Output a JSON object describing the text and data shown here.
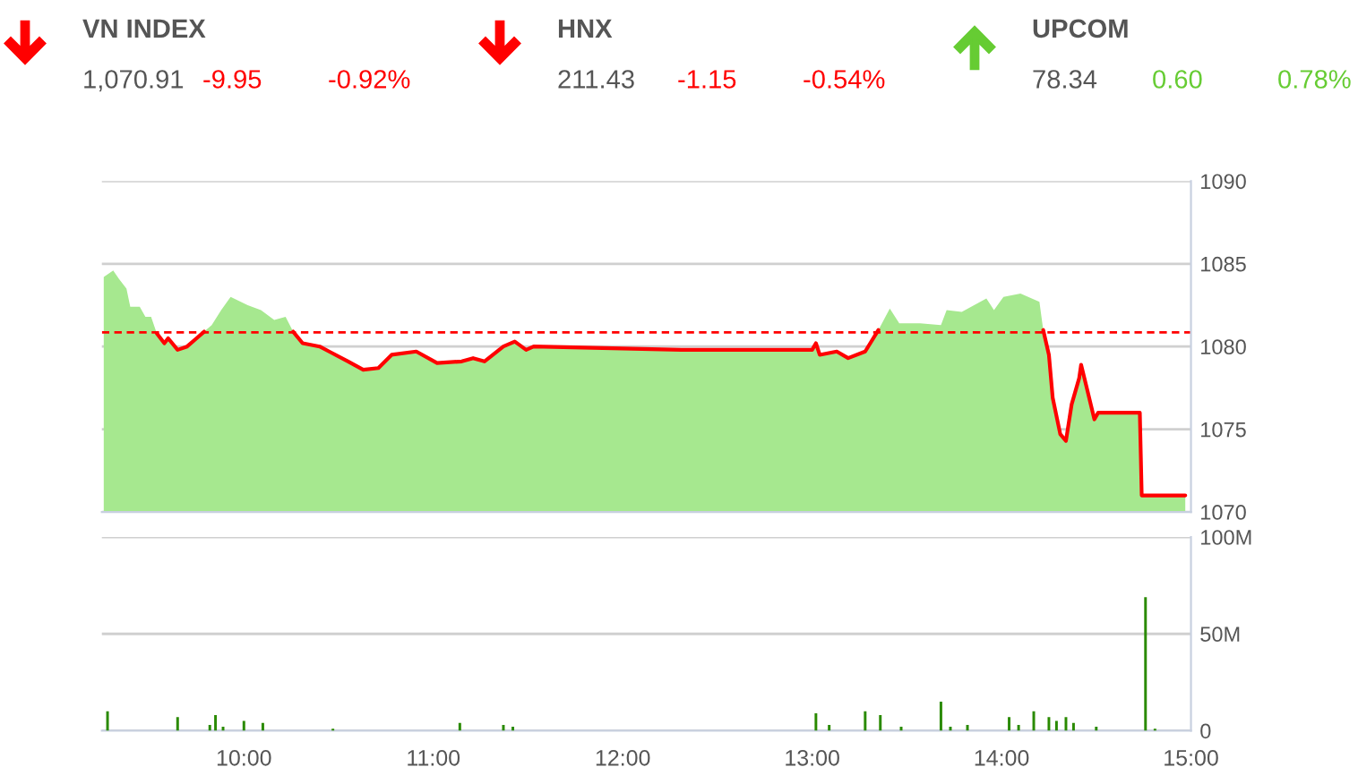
{
  "chart_data": [
    {
      "type": "other",
      "categories": [
        "VN INDEX",
        "HNX",
        "UPCOM"
      ],
      "annotations": [
        "1,070.91",
        "-9.95",
        "-0.92%",
        "211.43",
        "-1.15",
        "-0.54%",
        "78.34",
        "0.60",
        "0.78%"
      ],
      "colors": [
        "#ff0000",
        "#ff0000",
        "#66cc33"
      ]
    },
    {
      "type": "area",
      "x": [
        9.26,
        9.31,
        9.34,
        9.38,
        9.4,
        9.45,
        9.48,
        9.51,
        9.54,
        9.58,
        9.6,
        9.65,
        9.7,
        9.75,
        9.79,
        9.83,
        9.88,
        9.93,
        10.02,
        10.09,
        10.16,
        10.22,
        10.26,
        10.31,
        10.4,
        10.45,
        10.55,
        10.63,
        10.71,
        10.78,
        10.91,
        11.02,
        11.15,
        11.21,
        11.27,
        11.37,
        11.43,
        11.49,
        11.53,
        12.31,
        13.0,
        13.02,
        13.04,
        13.13,
        13.19,
        13.28,
        13.35,
        13.41,
        13.46,
        13.57,
        13.68,
        13.71,
        13.79,
        13.92,
        13.96,
        14.01,
        14.1,
        14.2,
        14.22,
        14.25,
        14.27,
        14.31,
        14.34,
        14.37,
        14.41,
        14.42,
        14.45,
        14.49,
        14.51,
        14.73,
        14.74,
        14.97
      ],
      "series": [
        {
          "type": "area",
          "color": "#a6e88f",
          "values": [
            1084.2,
            1084.6,
            1084.1,
            1083.5,
            1082.4,
            1082.4,
            1081.8,
            1081.8,
            1080.8,
            1080.2,
            1080.5,
            1079.8,
            1080.0,
            1080.5,
            1080.9,
            1081.3,
            1082.2,
            1083.0,
            1082.5,
            1082.2,
            1081.6,
            1081.8,
            1080.9,
            1080.2,
            1080.0,
            1079.7,
            1079.1,
            1078.6,
            1078.7,
            1079.5,
            1079.7,
            1079.0,
            1079.1,
            1079.3,
            1079.1,
            1080.0,
            1080.3,
            1079.8,
            1080.0,
            1079.8,
            1079.8,
            1080.2,
            1079.5,
            1079.7,
            1079.3,
            1079.7,
            1081.0,
            1082.3,
            1081.4,
            1081.4,
            1081.3,
            1082.2,
            1082.1,
            1082.9,
            1082.2,
            1083.0,
            1083.2,
            1082.7,
            1081.0,
            1079.5,
            1076.9,
            1074.7,
            1074.3,
            1076.5,
            1078.1,
            1078.9,
            1077.5,
            1075.6,
            1076.0,
            1076.0,
            1071.0,
            1071.0
          ]
        },
        {
          "type": "line",
          "color": "#ff0000",
          "values": [
            null,
            null,
            null,
            null,
            null,
            null,
            null,
            null,
            1080.8,
            1080.2,
            1080.5,
            1079.8,
            1080.0,
            1080.5,
            1080.9,
            null,
            null,
            null,
            null,
            null,
            null,
            null,
            1080.9,
            1080.2,
            1080.0,
            1079.7,
            1079.1,
            1078.6,
            1078.7,
            1079.5,
            1079.7,
            1079.0,
            1079.1,
            1079.3,
            1079.1,
            1080.0,
            1080.3,
            1079.8,
            1080.0,
            1079.8,
            1079.8,
            1080.2,
            1079.5,
            1079.7,
            1079.3,
            1079.7,
            1081.0,
            null,
            null,
            null,
            null,
            null,
            null,
            null,
            null,
            null,
            null,
            null,
            1081.0,
            1079.5,
            1076.9,
            1074.7,
            1074.3,
            1076.5,
            1078.1,
            1078.9,
            1077.5,
            1075.6,
            1076.0,
            1076.0,
            1071.0,
            1071.0
          ]
        }
      ],
      "xlim": [
        9.25,
        15
      ],
      "ylim": [
        1070,
        1090
      ],
      "yticks": [
        1070,
        1075,
        1080,
        1085,
        1090
      ],
      "ref_lines": [
        {
          "axis": "y",
          "value": 1080.86,
          "color": "#ff0000",
          "line_style": "dashed"
        }
      ],
      "grid": "y",
      "tick_labels": "y"
    },
    {
      "type": "bar",
      "x": [
        9.28,
        9.65,
        9.82,
        9.85,
        9.89,
        10.0,
        10.1,
        10.47,
        11.14,
        11.37,
        11.42,
        13.02,
        13.09,
        13.28,
        13.36,
        13.47,
        13.68,
        13.73,
        13.82,
        14.04,
        14.09,
        14.17,
        14.25,
        14.29,
        14.34,
        14.38,
        14.5,
        14.76,
        14.81
      ],
      "series": [
        {
          "color": "#2a8a00",
          "values": [
            10,
            7,
            3,
            8,
            2,
            5,
            4,
            1,
            4,
            3,
            2,
            9,
            3,
            10,
            8,
            2,
            15,
            2,
            3,
            7,
            3,
            10,
            7,
            5,
            7,
            4,
            2,
            69,
            1
          ]
        }
      ],
      "xlim": [
        9.25,
        15
      ],
      "xticks": [
        {
          "value": 10,
          "label": "10:00"
        },
        {
          "value": 11,
          "label": "11:00"
        },
        {
          "value": 12,
          "label": "12:00"
        },
        {
          "value": 13,
          "label": "13:00"
        },
        {
          "value": 14,
          "label": "14:00"
        },
        {
          "value": 15,
          "label": "15:00"
        }
      ],
      "ylim": [
        0,
        100
      ],
      "yticks": [
        0,
        {
          "value": 50,
          "label": "50M"
        },
        {
          "value": 100,
          "label": "100M"
        }
      ],
      "grid": "y"
    }
  ]
}
